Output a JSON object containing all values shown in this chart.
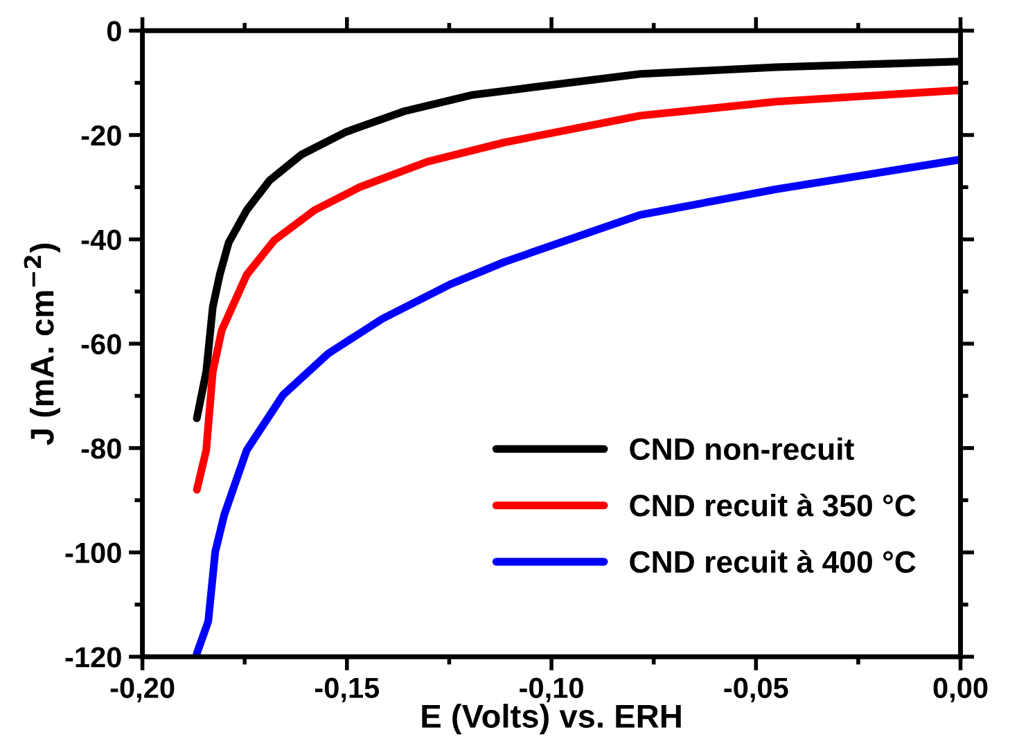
{
  "chart_data": {
    "type": "line",
    "xlabel": "E (Volts) vs. ERH",
    "ylabel": "J (mA. cm$^{−2}$)",
    "xlim": [
      -0.2,
      0.0
    ],
    "ylim": [
      -120,
      0
    ],
    "xticks": [
      {
        "value": -0.2,
        "label": "-0,20"
      },
      {
        "value": -0.15,
        "label": "-0,15"
      },
      {
        "value": -0.1,
        "label": "-0,10"
      },
      {
        "value": -0.05,
        "label": "-0,05"
      },
      {
        "value": 0.0,
        "label": "0,00"
      }
    ],
    "yticks": [
      -120,
      -100,
      -80,
      -60,
      -40,
      -20,
      0
    ],
    "grid": false,
    "legend": "bottom right",
    "marker": "none",
    "line_style": "solid",
    "series": [
      {
        "name": "CND non-recuit",
        "color": "#000000",
        "x": [
          -0.1867,
          -0.1844,
          -0.1828,
          -0.1811,
          -0.1789,
          -0.1745,
          -0.1689,
          -0.1612,
          -0.1502,
          -0.1358,
          -0.1192,
          -0.1081,
          -0.0783,
          -0.0451,
          0.0
        ],
        "values": [
          -74.3,
          -65.4,
          -53,
          -46.8,
          -40.6,
          -34.4,
          -28.7,
          -23.8,
          -19.4,
          -15.4,
          -12.3,
          -11.2,
          -8.3,
          -7.0,
          -5.9
        ]
      },
      {
        "name": "CND recuit à 350 °C",
        "color": "#ff0000",
        "x": [
          -0.1867,
          -0.1844,
          -0.1828,
          -0.1806,
          -0.1745,
          -0.1678,
          -0.1579,
          -0.1469,
          -0.1303,
          -0.1114,
          -0.0783,
          -0.0451,
          0.0
        ],
        "values": [
          -88,
          -80.4,
          -65.4,
          -57.4,
          -46.8,
          -40.2,
          -34.4,
          -30,
          -25.1,
          -21.4,
          -16.3,
          -13.6,
          -11.4
        ]
      },
      {
        "name": "CND recuit à 400 °C",
        "color": "#0000ff",
        "x": [
          -0.1867,
          -0.1839,
          -0.1822,
          -0.18,
          -0.1745,
          -0.1656,
          -0.1546,
          -0.1413,
          -0.1247,
          -0.1114,
          -0.0783,
          -0.0451,
          0.0
        ],
        "values": [
          -119.4,
          -113.2,
          -99.9,
          -92.8,
          -80.4,
          -69.8,
          -61.9,
          -55.2,
          -48.6,
          -44.3,
          -35.3,
          -30.4,
          -24.7
        ]
      }
    ]
  }
}
